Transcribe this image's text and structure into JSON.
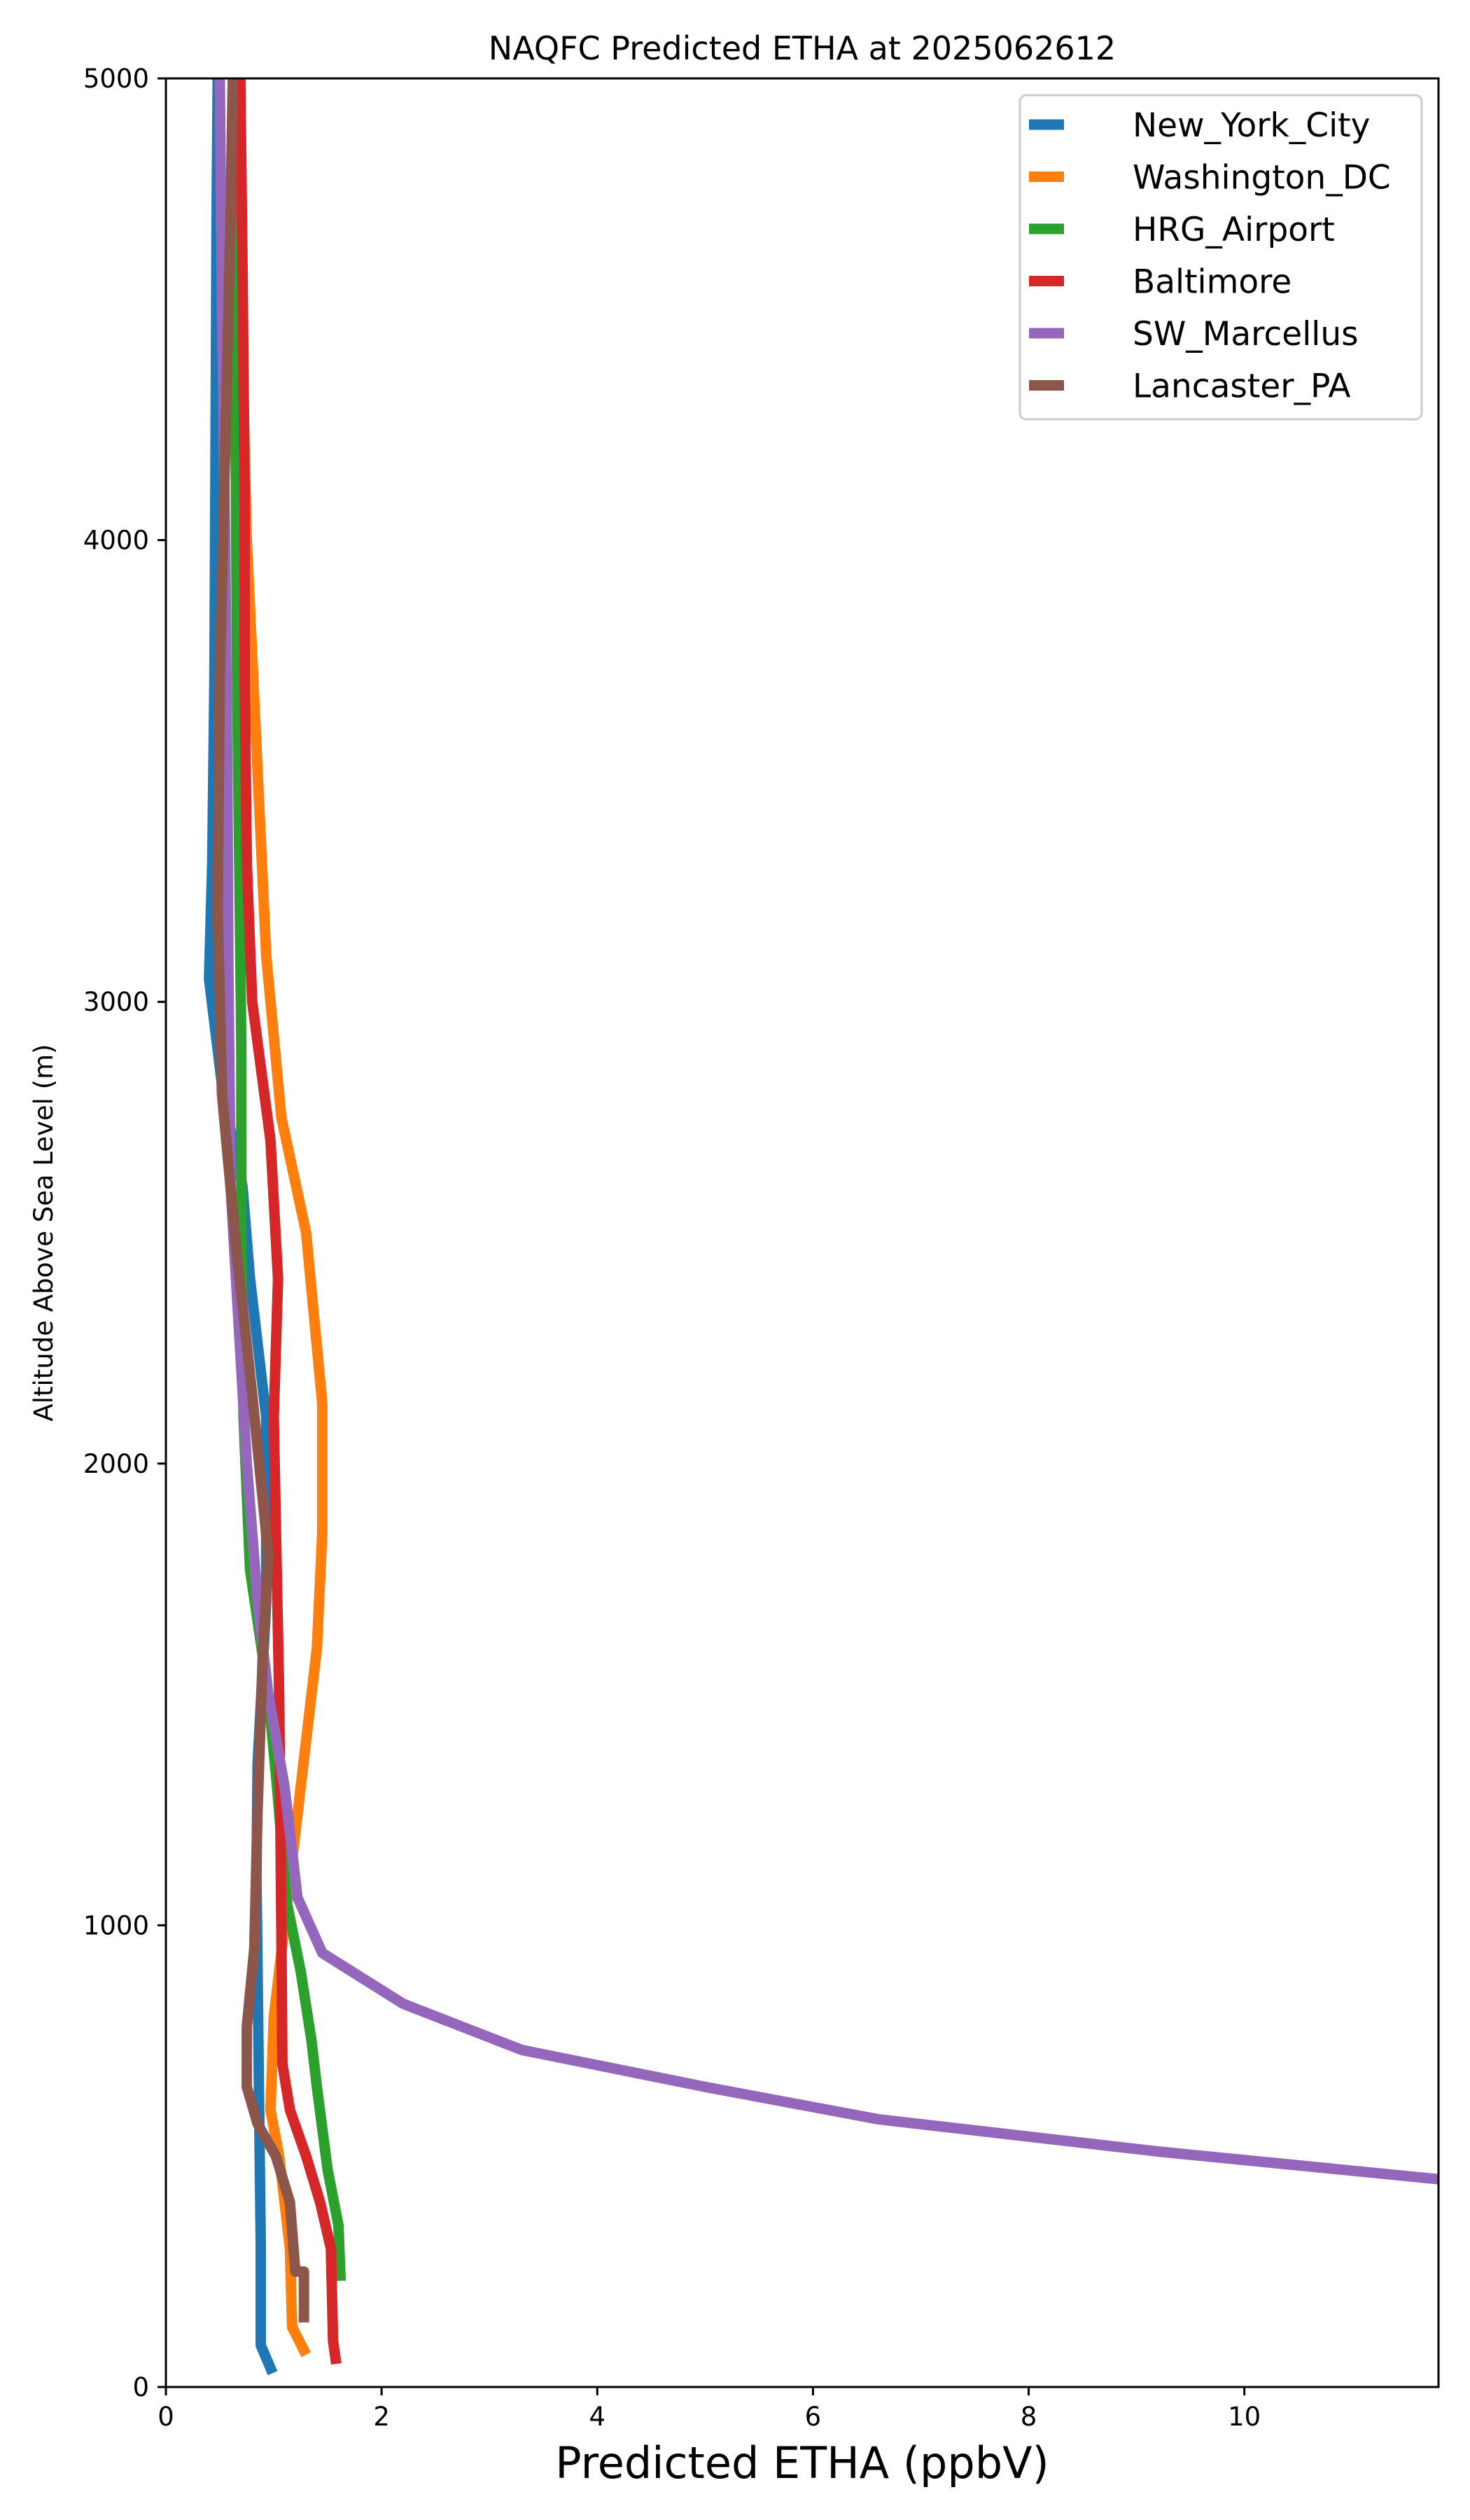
{
  "chart_data": {
    "type": "line",
    "title": "NAQFC Predicted ETHA at 2025062612",
    "xlabel": "Predicted ETHA (ppbV)",
    "ylabel": "Altitude Above Sea Level (m)",
    "xlim": [
      0,
      11.8
    ],
    "ylim": [
      0,
      5000
    ],
    "xticks": [
      0,
      2,
      4,
      6,
      8,
      10
    ],
    "yticks": [
      0,
      1000,
      2000,
      3000,
      4000,
      5000
    ],
    "grid": false,
    "legend_position": "top-right",
    "series": [
      {
        "name": "New_York_City",
        "color": "#1f77b4",
        "x": [
          0.99,
          0.88,
          0.88,
          0.87,
          0.86,
          0.85,
          0.84,
          0.85,
          0.93,
          0.93,
          0.78,
          0.71,
          0.53,
          0.4,
          0.43,
          0.45,
          0.46,
          0.47,
          0.48
        ],
        "y": [
          30,
          90,
          300,
          500,
          700,
          900,
          1100,
          1350,
          1700,
          2100,
          2400,
          2600,
          2800,
          3050,
          3300,
          3700,
          4200,
          4700,
          5000
        ]
      },
      {
        "name": "Washington_DC",
        "color": "#ff7f0e",
        "x": [
          1.3,
          1.17,
          1.15,
          1.05,
          0.97,
          1.0,
          1.1,
          1.2,
          1.3,
          1.4,
          1.45,
          1.45,
          1.3,
          1.07,
          0.93,
          0.85,
          0.75,
          0.7,
          0.68
        ],
        "y": [
          70,
          130,
          300,
          500,
          600,
          800,
          1000,
          1200,
          1400,
          1600,
          1850,
          2130,
          2500,
          2750,
          3100,
          3500,
          4000,
          4500,
          5000
        ]
      },
      {
        "name": "HRG_Airport",
        "color": "#2ca02c",
        "x": [
          1.62,
          1.6,
          1.5,
          1.4,
          1.35,
          1.25,
          1.12,
          1.03,
          0.95,
          0.78,
          0.72,
          0.7,
          0.7,
          0.68,
          0.66,
          0.65,
          0.63,
          0.62
        ],
        "y": [
          230,
          350,
          470,
          650,
          750,
          900,
          1050,
          1300,
          1500,
          1770,
          2100,
          2500,
          2900,
          3300,
          3700,
          4100,
          4600,
          5000
        ]
      },
      {
        "name": "Baltimore",
        "color": "#d62728",
        "x": [
          1.58,
          1.55,
          1.53,
          1.43,
          1.3,
          1.15,
          1.08,
          1.07,
          1.05,
          1.0,
          1.04,
          0.97,
          0.8,
          0.75,
          0.73,
          0.73,
          0.71,
          0.69
        ],
        "y": [
          50,
          100,
          300,
          400,
          500,
          600,
          700,
          1000,
          1500,
          2100,
          2400,
          2700,
          3000,
          3300,
          3700,
          4100,
          4600,
          5000
        ]
      },
      {
        "name": "SW_Marcellus",
        "color": "#9467bd",
        "x": [
          11.8,
          9.2,
          6.6,
          5.0,
          3.3,
          2.2,
          1.45,
          1.22,
          1.1,
          0.95,
          0.85,
          0.75,
          0.65,
          0.6,
          0.58,
          0.57,
          0.55,
          0.52,
          0.5
        ],
        "y": [
          450,
          510,
          580,
          650,
          730,
          830,
          940,
          1060,
          1300,
          1500,
          1700,
          2000,
          2400,
          2600,
          3050,
          3500,
          4000,
          4500,
          5000
        ]
      },
      {
        "name": "Lancaster_PA",
        "color": "#8c564b",
        "x": [
          1.28,
          1.28,
          1.2,
          1.15,
          1.02,
          0.85,
          0.75,
          0.75,
          0.82,
          0.85,
          0.9,
          0.95,
          0.8,
          0.65,
          0.52,
          0.48,
          0.5,
          0.55,
          0.6,
          0.62
        ],
        "y": [
          140,
          250,
          250,
          400,
          500,
          570,
          650,
          780,
          950,
          1250,
          1600,
          1800,
          2150,
          2470,
          2800,
          3200,
          3700,
          4200,
          4700,
          5000
        ]
      }
    ]
  }
}
